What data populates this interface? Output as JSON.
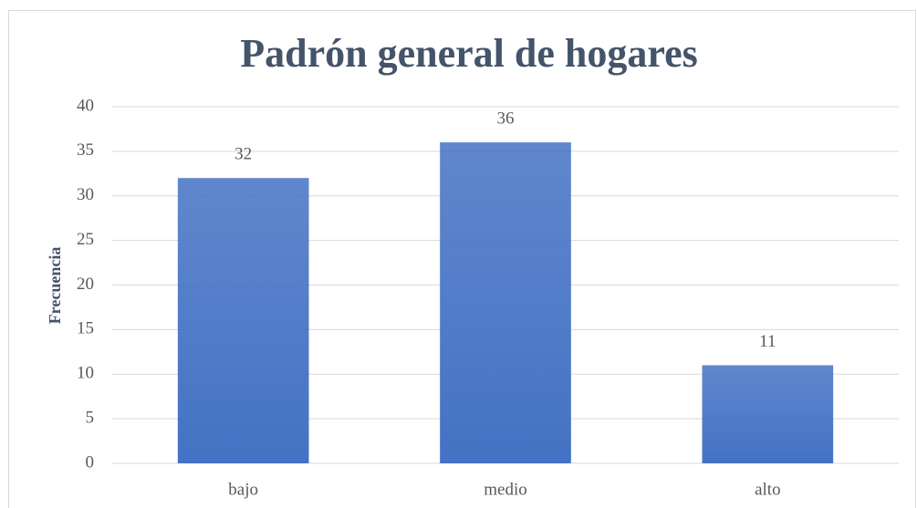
{
  "chart_data": {
    "type": "bar",
    "title": "Padrón general de hogares",
    "y_label": "Frecuencia",
    "categories": [
      "bajo",
      "medio",
      "alto"
    ],
    "values": [
      32,
      36,
      11
    ],
    "color": "#4472c4",
    "ylim": [
      0,
      40
    ],
    "yticks": [
      0,
      5,
      10,
      15,
      20,
      25,
      30,
      35,
      40
    ],
    "grid": true
  }
}
